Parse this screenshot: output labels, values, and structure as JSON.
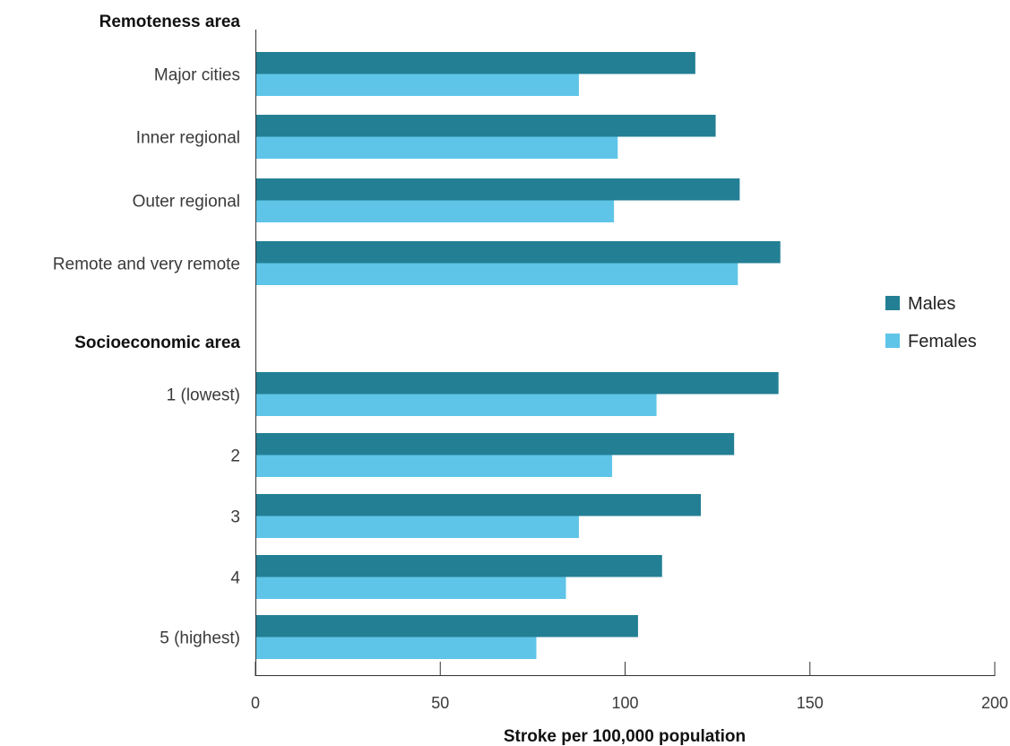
{
  "chart_data": {
    "type": "bar",
    "orientation": "horizontal",
    "xlabel": "Stroke per 100,000 population",
    "xlim": [
      0,
      200
    ],
    "xticks": [
      0,
      50,
      100,
      150,
      200
    ],
    "grid": false,
    "legend_position": "right",
    "groups": [
      {
        "label": "Remoteness area",
        "categories": [
          "Major cities",
          "Inner regional",
          "Outer regional",
          "Remote and very remote"
        ]
      },
      {
        "label": "Socioeconomic area",
        "categories": [
          "1 (lowest)",
          "2",
          "3",
          "4",
          "5 (highest)"
        ]
      }
    ],
    "categories": [
      "Major cities",
      "Inner regional",
      "Outer regional",
      "Remote and very remote",
      "1 (lowest)",
      "2",
      "3",
      "4",
      "5 (highest)"
    ],
    "series": [
      {
        "name": "Males",
        "color": "#237f94",
        "values": [
          119,
          124.5,
          131,
          142,
          141.5,
          129.5,
          120.5,
          110,
          103.5
        ]
      },
      {
        "name": "Females",
        "color": "#5ec5e8",
        "values": [
          87.5,
          98,
          97,
          130.5,
          108.5,
          96.5,
          87.5,
          84,
          76
        ]
      }
    ]
  }
}
